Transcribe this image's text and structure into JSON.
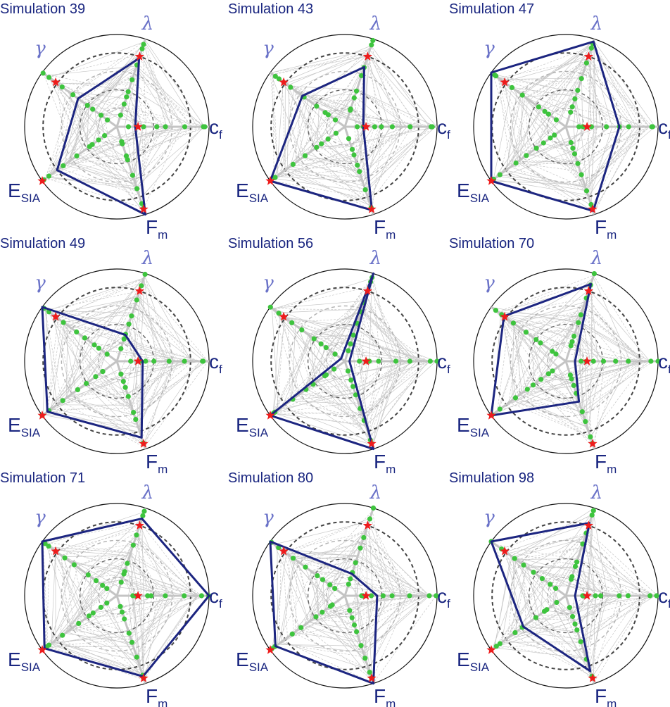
{
  "colors": {
    "polygon": "#1c2580",
    "label_blue": "#1a2680",
    "greek_blue": "#6a72c8",
    "ensemble_gray": "#c8c8c8",
    "ring_dark": "#444444",
    "ring_light": "#b0b0b0",
    "green_dot": "#3ec43e",
    "red_star": "#ee1c1c"
  },
  "axes": [
    {
      "key": "cf",
      "main": "c",
      "sub": "f",
      "style": "latin"
    },
    {
      "key": "lambda",
      "main": "λ",
      "sub": "",
      "style": "greek"
    },
    {
      "key": "gamma",
      "main": "γ",
      "sub": "",
      "style": "greek"
    },
    {
      "key": "esia",
      "main": "E",
      "sub": "SIA",
      "style": "latin"
    },
    {
      "key": "fm",
      "main": "F",
      "sub": "m",
      "style": "latin"
    }
  ],
  "chart_data": [
    {
      "type": "radar",
      "title": "Simulation 39",
      "rlim": [
        0,
        1
      ],
      "values": {
        "cf": 0.2,
        "lambda": 0.78,
        "gamma": 0.52,
        "esia": 0.8,
        "fm": 1.0
      },
      "reference": {
        "cf": 0.23,
        "lambda": 0.8,
        "gamma": 0.82,
        "esia": 1.0,
        "fm": 0.94
      }
    },
    {
      "type": "radar",
      "title": "Simulation 43",
      "rlim": [
        0,
        1
      ],
      "values": {
        "cf": 0.2,
        "lambda": 0.68,
        "gamma": 0.57,
        "esia": 1.0,
        "fm": 0.95
      },
      "reference": {
        "cf": 0.23,
        "lambda": 0.8,
        "gamma": 0.82,
        "esia": 1.0,
        "fm": 0.94
      }
    },
    {
      "type": "radar",
      "title": "Simulation 47",
      "rlim": [
        0,
        1
      ],
      "values": {
        "cf": 0.58,
        "lambda": 0.97,
        "gamma": 1.0,
        "esia": 1.0,
        "fm": 0.96
      },
      "reference": {
        "cf": 0.23,
        "lambda": 0.8,
        "gamma": 0.82,
        "esia": 1.0,
        "fm": 0.94
      }
    },
    {
      "type": "radar",
      "title": "Simulation 49",
      "rlim": [
        0,
        1
      ],
      "values": {
        "cf": 0.28,
        "lambda": 0.3,
        "gamma": 1.0,
        "esia": 0.93,
        "fm": 0.87
      },
      "reference": {
        "cf": 0.23,
        "lambda": 0.8,
        "gamma": 0.82,
        "esia": 1.0,
        "fm": 0.94
      }
    },
    {
      "type": "radar",
      "title": "Simulation 56",
      "rlim": [
        0,
        1
      ],
      "values": {
        "cf": 0.05,
        "lambda": 1.0,
        "gamma": 0.05,
        "esia": 1.0,
        "fm": 1.0
      },
      "reference": {
        "cf": 0.23,
        "lambda": 0.8,
        "gamma": 0.82,
        "esia": 1.0,
        "fm": 0.94
      }
    },
    {
      "type": "radar",
      "title": "Simulation 70",
      "rlim": [
        0,
        1
      ],
      "values": {
        "cf": 0.1,
        "lambda": 0.88,
        "gamma": 0.83,
        "esia": 1.0,
        "fm": 0.46
      },
      "reference": {
        "cf": 0.23,
        "lambda": 0.8,
        "gamma": 0.82,
        "esia": 1.0,
        "fm": 0.94
      }
    },
    {
      "type": "radar",
      "title": "Simulation 71",
      "rlim": [
        0,
        1
      ],
      "values": {
        "cf": 1.0,
        "lambda": 0.88,
        "gamma": 1.0,
        "esia": 0.97,
        "fm": 0.92
      },
      "reference": {
        "cf": 0.23,
        "lambda": 0.8,
        "gamma": 0.82,
        "esia": 1.0,
        "fm": 0.94
      }
    },
    {
      "type": "radar",
      "title": "Simulation 80",
      "rlim": [
        0,
        1
      ],
      "values": {
        "cf": 0.35,
        "lambda": 0.25,
        "gamma": 1.0,
        "esia": 0.93,
        "fm": 1.0
      },
      "reference": {
        "cf": 0.23,
        "lambda": 0.8,
        "gamma": 0.82,
        "esia": 1.0,
        "fm": 0.94
      }
    },
    {
      "type": "radar",
      "title": "Simulation 98",
      "rlim": [
        0,
        1
      ],
      "values": {
        "cf": 0.1,
        "lambda": 0.83,
        "gamma": 1.0,
        "esia": 0.57,
        "fm": 0.86
      },
      "reference": {
        "cf": 0.23,
        "lambda": 0.8,
        "gamma": 0.82,
        "esia": 1.0,
        "fm": 0.94
      }
    }
  ]
}
